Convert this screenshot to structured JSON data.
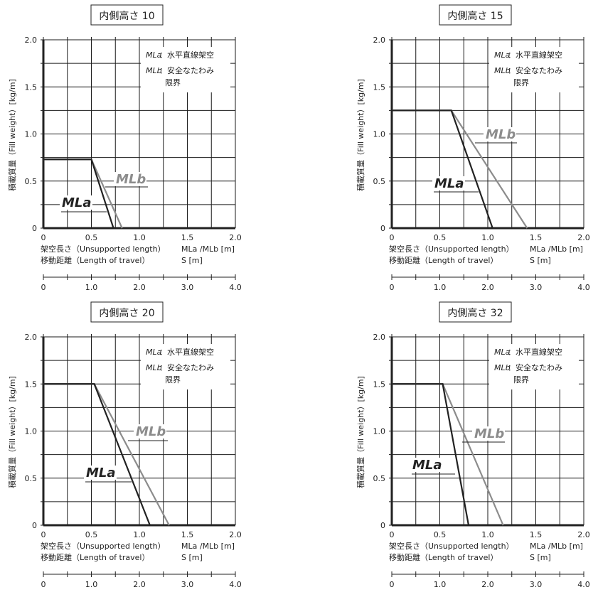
{
  "common": {
    "ylabel": "積載質量（Fill weight）[kg/m]",
    "xlabel1": "架空長さ（Unsupported length）",
    "xlabel2": "移動距離（Length of travel）",
    "xunit1": "MLa /MLb [m]",
    "xunit2": "S [m]",
    "legend": {
      "mla_key": "MLa",
      "mla_text": "：水平直線架空",
      "mlb_key": "MLb",
      "mlb_text": "：安全なたわみ",
      "mlb_text2": "限界"
    },
    "colors": {
      "mla": "#222222",
      "mlb": "#8c8c8c",
      "grid": "#1a1a1a"
    }
  },
  "chart_data": [
    {
      "type": "line",
      "title": "内側高さ 10",
      "xlim": [
        0,
        2.0
      ],
      "ylim": [
        0,
        2.0
      ],
      "x2lim": [
        0,
        4.0
      ],
      "xticks": [
        "0",
        "0.5",
        "1.0",
        "1.5",
        "2.0"
      ],
      "yticks": [
        "0",
        "0.5",
        "1.0",
        "1.5",
        "2.0"
      ],
      "x2ticks": [
        "0",
        "1.0",
        "2.0",
        "3.0",
        "4.0"
      ],
      "series": [
        {
          "name": "MLa",
          "points": [
            [
              0,
              0.73
            ],
            [
              0.5,
              0.73
            ],
            [
              0.73,
              0
            ]
          ]
        },
        {
          "name": "MLb",
          "points": [
            [
              0,
              0.73
            ],
            [
              0.5,
              0.73
            ],
            [
              0.82,
              0
            ]
          ]
        }
      ]
    },
    {
      "type": "line",
      "title": "内側高さ 15",
      "xlim": [
        0,
        2.0
      ],
      "ylim": [
        0,
        2.0
      ],
      "x2lim": [
        0,
        4.0
      ],
      "xticks": [
        "0",
        "0.5",
        "1.0",
        "1.5",
        "2.0"
      ],
      "yticks": [
        "0",
        "0.5",
        "1.0",
        "1.5",
        "2.0"
      ],
      "x2ticks": [
        "0",
        "1.0",
        "2.0",
        "3.0",
        "4.0"
      ],
      "series": [
        {
          "name": "MLa",
          "points": [
            [
              0,
              1.25
            ],
            [
              0.62,
              1.25
            ],
            [
              1.05,
              0
            ]
          ]
        },
        {
          "name": "MLb",
          "points": [
            [
              0,
              1.25
            ],
            [
              0.62,
              1.25
            ],
            [
              1.41,
              0
            ]
          ]
        }
      ]
    },
    {
      "type": "line",
      "title": "内側高さ 20",
      "xlim": [
        0,
        2.0
      ],
      "ylim": [
        0,
        2.0
      ],
      "x2lim": [
        0,
        4.0
      ],
      "xticks": [
        "0",
        "0.5",
        "1.0",
        "1.5",
        "2.0"
      ],
      "yticks": [
        "0",
        "0.5",
        "1.0",
        "1.5",
        "2.0"
      ],
      "x2ticks": [
        "0",
        "1.0",
        "2.0",
        "3.0",
        "4.0"
      ],
      "series": [
        {
          "name": "MLa",
          "points": [
            [
              0,
              1.5
            ],
            [
              0.53,
              1.5
            ],
            [
              1.11,
              0
            ]
          ]
        },
        {
          "name": "MLb",
          "points": [
            [
              0,
              1.5
            ],
            [
              0.53,
              1.5
            ],
            [
              1.31,
              0
            ]
          ]
        }
      ]
    },
    {
      "type": "line",
      "title": "内側高さ 32",
      "xlim": [
        0,
        2.0
      ],
      "ylim": [
        0,
        2.0
      ],
      "x2lim": [
        0,
        4.0
      ],
      "xticks": [
        "0",
        "0.5",
        "1.0",
        "1.5",
        "2.0"
      ],
      "yticks": [
        "0",
        "0.5",
        "1.0",
        "1.5",
        "2.0"
      ],
      "x2ticks": [
        "0",
        "1.0",
        "2.0",
        "3.0",
        "4.0"
      ],
      "series": [
        {
          "name": "MLa",
          "points": [
            [
              0,
              1.5
            ],
            [
              0.53,
              1.5
            ],
            [
              0.8,
              0
            ]
          ]
        },
        {
          "name": "MLb",
          "points": [
            [
              0,
              1.5
            ],
            [
              0.53,
              1.5
            ],
            [
              1.16,
              0
            ]
          ]
        }
      ]
    }
  ]
}
